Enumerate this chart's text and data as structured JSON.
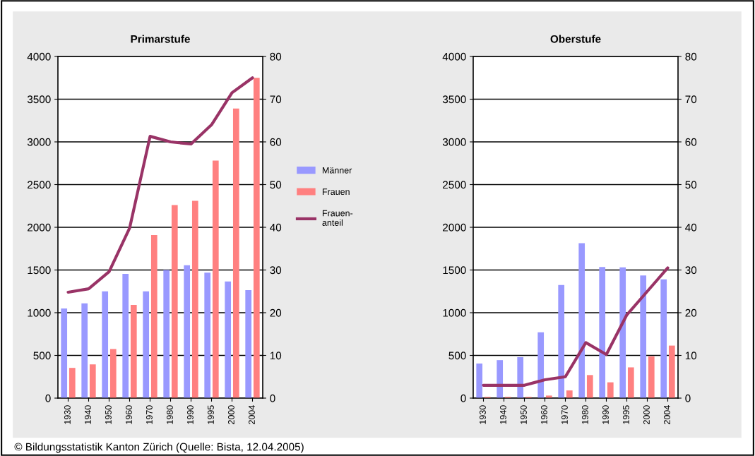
{
  "chart_data": [
    {
      "type": "bar",
      "title": "Primarstufe",
      "categories": [
        "1930",
        "1940",
        "1950",
        "1960",
        "1970",
        "1980",
        "1990",
        "1995",
        "2000",
        "2004"
      ],
      "series": [
        {
          "name": "Männer",
          "color": "#9999ff",
          "values": [
            1050,
            1110,
            1250,
            1455,
            1250,
            1500,
            1555,
            1470,
            1365,
            1265
          ]
        },
        {
          "name": "Frauen",
          "color": "#ff8080",
          "values": [
            354,
            395,
            575,
            1090,
            1910,
            2260,
            2310,
            2780,
            3390,
            3750
          ]
        },
        {
          "name": "Frauen-\nanteil",
          "type": "line",
          "axis": "y2",
          "color": "#993366",
          "values": [
            24.8,
            25.6,
            29.6,
            39.8,
            61.3,
            60,
            59.5,
            64,
            71.5,
            75
          ]
        }
      ],
      "ylim": [
        0,
        4000
      ],
      "yticks": [
        0,
        500,
        1000,
        1500,
        2000,
        2500,
        3000,
        3500,
        4000
      ],
      "y2lim": [
        0,
        80
      ],
      "y2ticks": [
        0,
        10,
        20,
        30,
        40,
        50,
        60,
        70,
        80
      ],
      "grid": "y",
      "legend": "right"
    },
    {
      "type": "bar",
      "title": "Oberstufe",
      "categories": [
        "1930",
        "1940",
        "1950",
        "1960",
        "1970",
        "1980",
        "1990",
        "1995",
        "2000",
        "2004"
      ],
      "series": [
        {
          "color": "#9999ff",
          "values": [
            405,
            445,
            480,
            770,
            1325,
            1815,
            1535,
            1530,
            1435,
            1390
          ]
        },
        {
          "color": "#ff8080",
          "values": [
            15,
            15,
            15,
            30,
            90,
            270,
            185,
            360,
            490,
            615
          ]
        },
        {
          "type": "line",
          "axis": "y2",
          "color": "#993366",
          "values": [
            3,
            3,
            3,
            4.3,
            5,
            13,
            10.2,
            19.5,
            25,
            30.5
          ]
        }
      ],
      "ylim": [
        0,
        4000
      ],
      "yticks": [
        0,
        500,
        1000,
        1500,
        2000,
        2500,
        3000,
        3500,
        4000
      ],
      "y2lim": [
        0,
        80
      ],
      "y2ticks": [
        0,
        10,
        20,
        30,
        40,
        50,
        60,
        70,
        80
      ],
      "grid": "y",
      "annotations": [
        "© Bildungsstatistik Kanton Zürich (Quelle: Bista, 12.04.2005)"
      ]
    }
  ]
}
